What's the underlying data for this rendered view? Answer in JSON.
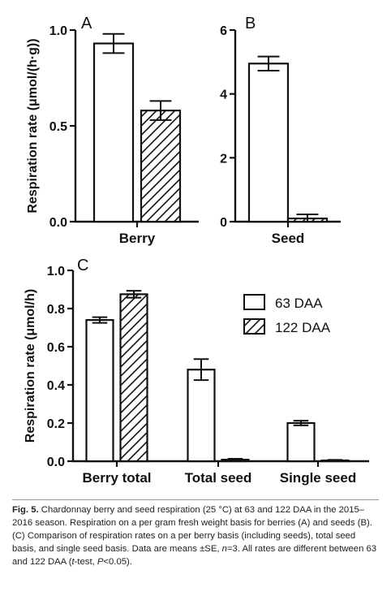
{
  "chart_data": [
    {
      "type": "bar",
      "panel_label": "A",
      "ylabel": "Respiration rate (μmol/(h·g))",
      "xlabel": "Berry",
      "categories": [
        "Berry"
      ],
      "ylim": [
        0,
        1.0
      ],
      "yticks": [
        "0.0",
        "0.5",
        "1.0"
      ],
      "ytick_values": [
        0,
        0.5,
        1.0
      ],
      "series": [
        {
          "name": "63 DAA",
          "values": [
            0.93
          ],
          "errors": [
            0.05
          ]
        },
        {
          "name": "122 DAA",
          "values": [
            0.58
          ],
          "errors": [
            0.05
          ]
        }
      ]
    },
    {
      "type": "bar",
      "panel_label": "B",
      "ylabel": "",
      "xlabel": "Seed",
      "categories": [
        "Seed"
      ],
      "ylim": [
        0,
        6
      ],
      "yticks": [
        "0",
        "2",
        "4",
        "6"
      ],
      "ytick_values": [
        0,
        2,
        4,
        6
      ],
      "series": [
        {
          "name": "63 DAA",
          "values": [
            4.95
          ],
          "errors": [
            0.22
          ]
        },
        {
          "name": "122 DAA",
          "values": [
            0.1
          ],
          "errors": [
            0.13
          ]
        }
      ]
    },
    {
      "type": "bar",
      "panel_label": "C",
      "ylabel": "Respiration rate (μmol/h)",
      "xlabel": "",
      "categories": [
        "Berry total",
        "Total seed",
        "Single seed"
      ],
      "ylim": [
        0,
        1.0
      ],
      "yticks": [
        "0.0",
        "0.2",
        "0.4",
        "0.6",
        "0.8",
        "1.0"
      ],
      "ytick_values": [
        0,
        0.2,
        0.4,
        0.6,
        0.8,
        1.0
      ],
      "legend_position": "top-right",
      "series": [
        {
          "name": "63 DAA",
          "values": [
            0.74,
            0.48,
            0.2
          ],
          "errors": [
            0.015,
            0.055,
            0.012
          ]
        },
        {
          "name": "122 DAA",
          "values": [
            0.875,
            0.008,
            0.004
          ],
          "errors": [
            0.018,
            0.005,
            0.003
          ]
        }
      ]
    }
  ],
  "colors": {
    "axis": "#111111",
    "bar_fill": "#ffffff",
    "hatch": "#111111"
  },
  "caption": {
    "label": "Fig. 5.",
    "part1": " Chardonnay berry and seed respiration (25 °C) at 63 and 122 DAA in the 2015–2016 season. Respiration on a per gram fresh weight basis for berries (A) and seeds (B). (C) Comparison of respiration rates on a per berry basis (including seeds), total seed basis, and single seed basis. Data are means ±SE, ",
    "n_sym": "n",
    "part2": "=3. All rates are different between 63 and 122 DAA (",
    "t_sym": "t",
    "part3": "-test, ",
    "p_sym": "P",
    "part4": "<0.05)."
  }
}
